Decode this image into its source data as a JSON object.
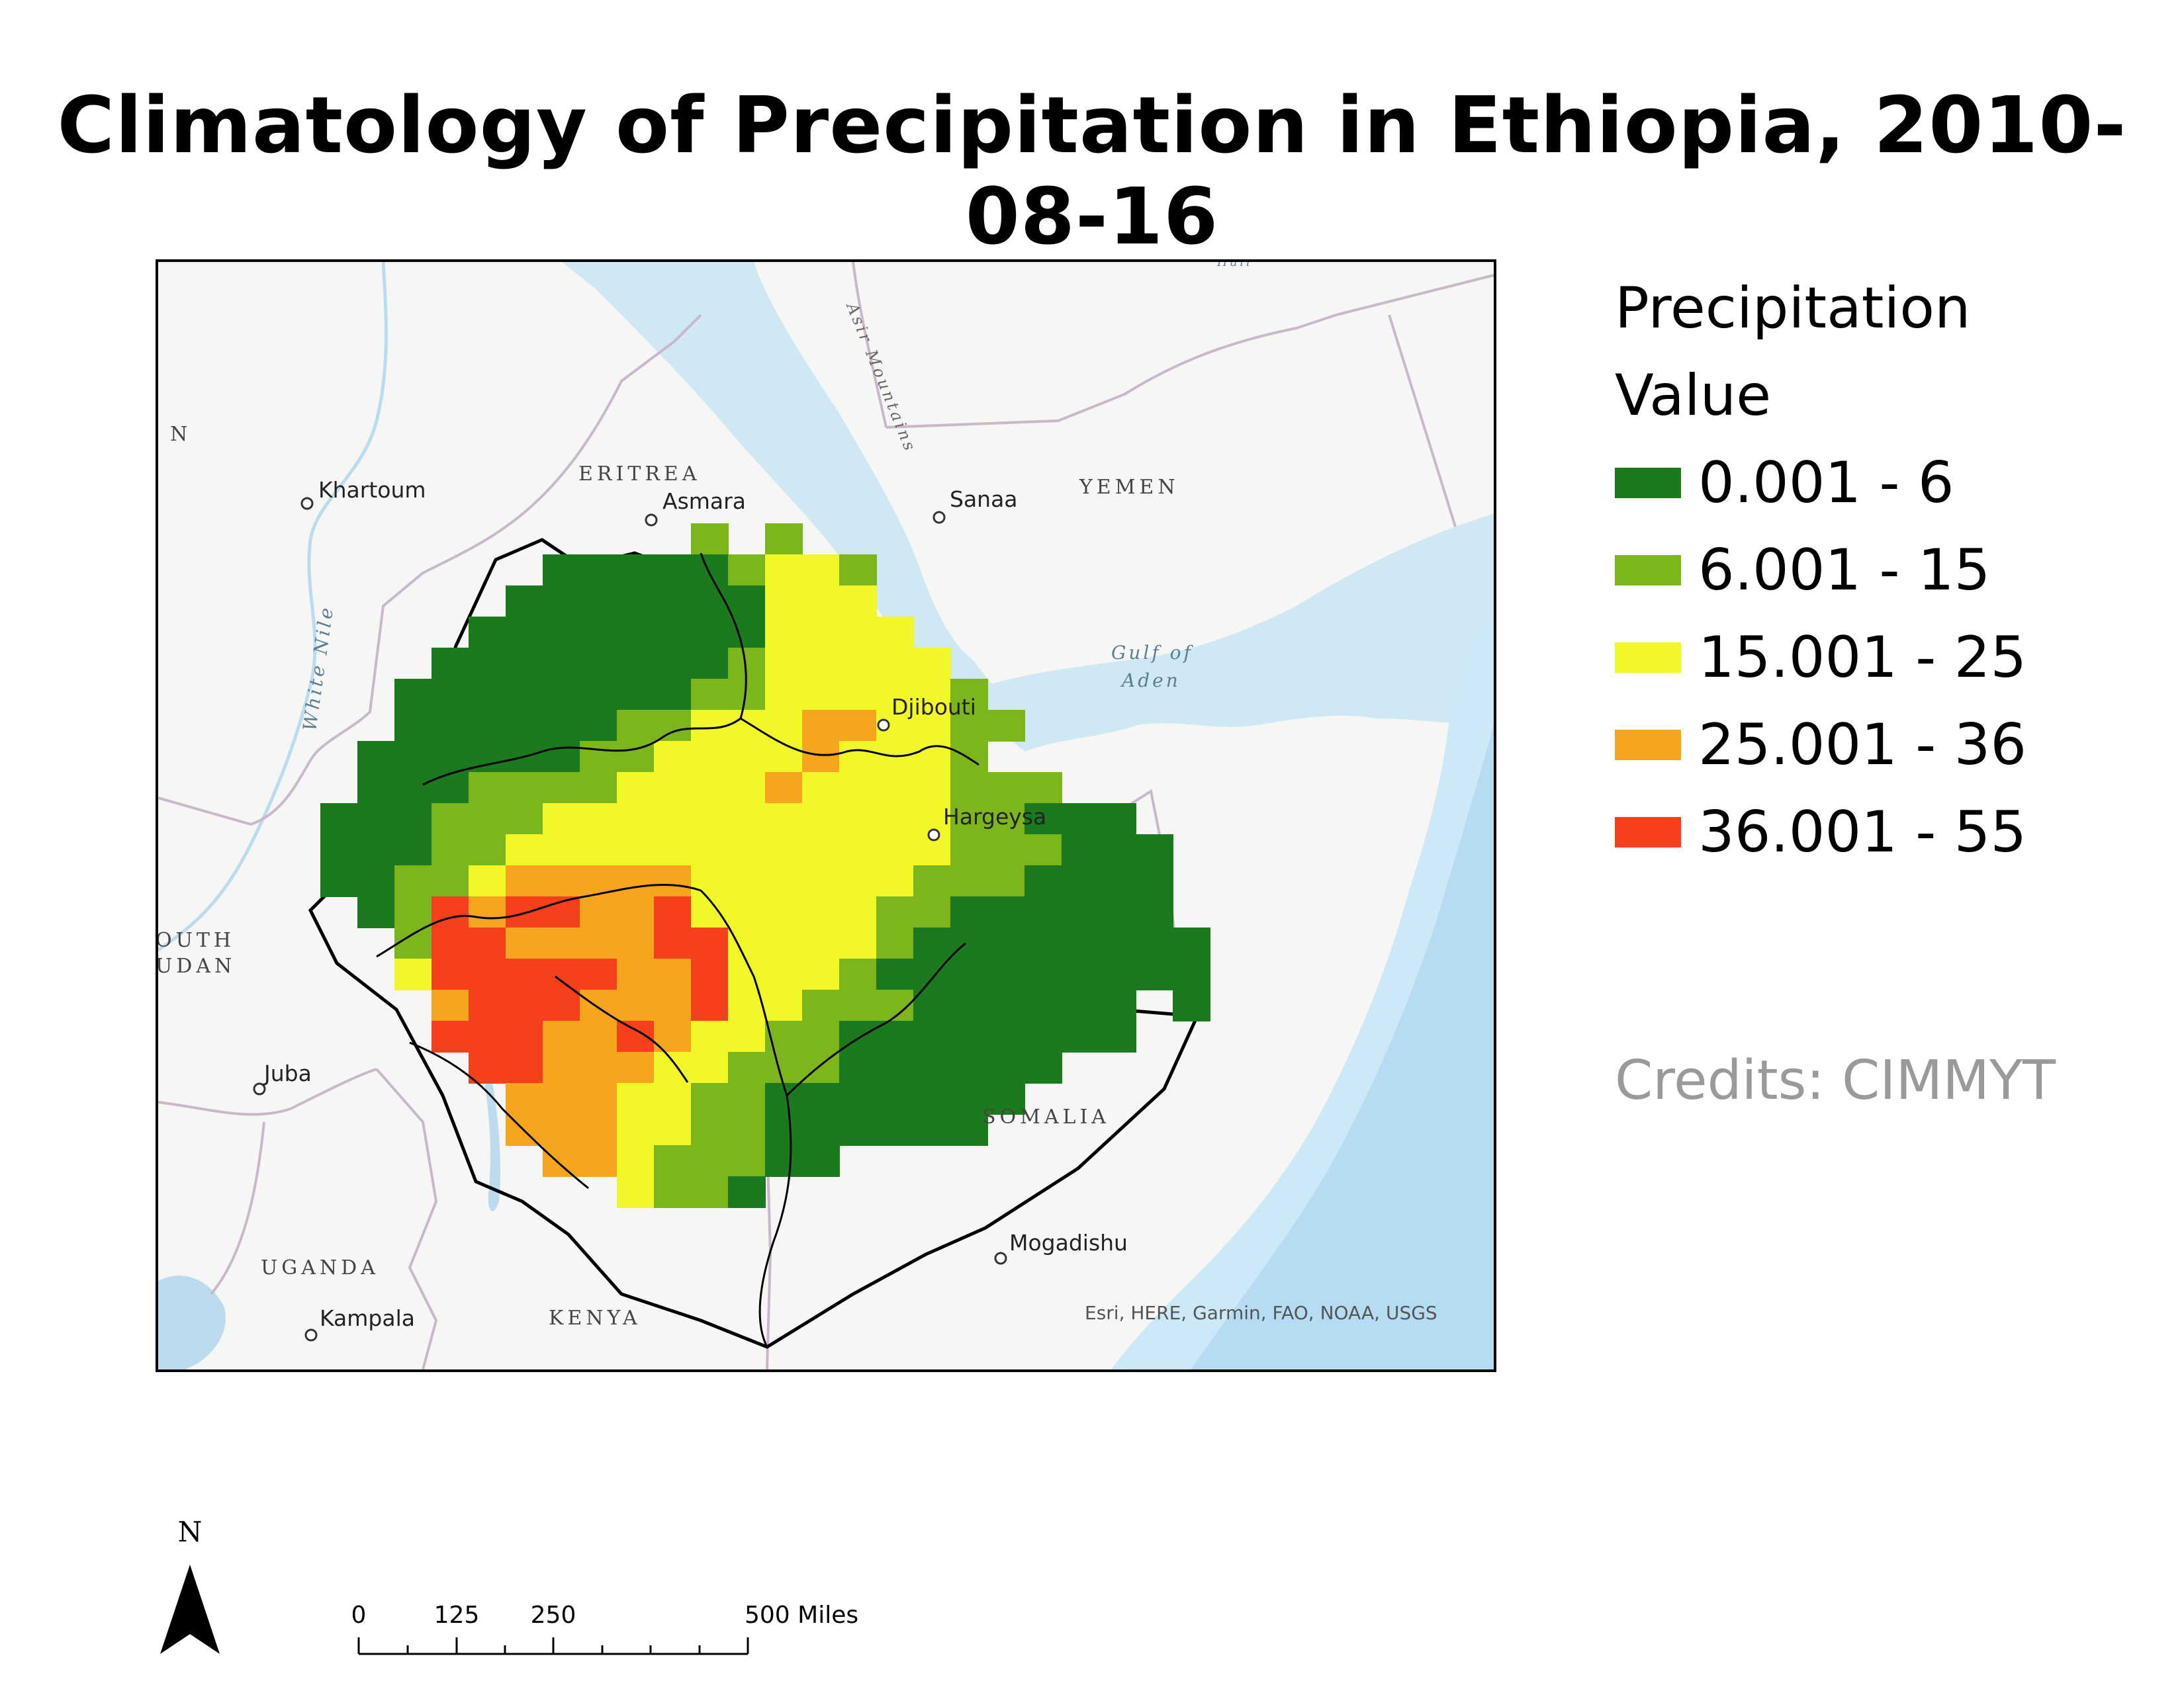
{
  "title": "Climatology of Precipitation in Ethiopia, 2010-08-16",
  "legend": {
    "title_line1": "Precipitation",
    "title_line2": "Value",
    "classes": [
      {
        "label": "0.001 - 6",
        "color": "#1b7a1e"
      },
      {
        "label": "6.001 - 15",
        "color": "#7db51c"
      },
      {
        "label": "15.001 - 25",
        "color": "#f2f72a"
      },
      {
        "label": "25.001 - 36",
        "color": "#f7a51e"
      },
      {
        "label": "36.001 - 55",
        "color": "#f6401c"
      }
    ]
  },
  "credits": "Credits: CIMMYT",
  "map": {
    "attribution": "Esri, HERE, Garmin, FAO, NOAA, USGS",
    "cities": {
      "khartoum": "Khartoum",
      "asmara": "Asmara",
      "sanaa": "Sanaa",
      "djibouti": "Djibouti",
      "hargeysa": "Hargeysa",
      "juba": "Juba",
      "kampala": "Kampala",
      "mogadishu": "Mogadishu"
    },
    "countries": {
      "eritrea": "ERITREA",
      "yemen": "YEMEN",
      "somalia": "SOMALIA",
      "uganda": "UGANDA",
      "kenya": "KENYA",
      "south_sudan_1": "OUTH",
      "south_sudan_2": "UDAN",
      "sudan_fragment": "N"
    },
    "water": {
      "gulf_1": "Gulf of",
      "gulf_2": "Aden",
      "white_nile": "White Nile",
      "asir": "Asir Mountains",
      "top_fragment": "Hail"
    }
  },
  "north_arrow": {
    "label": "N"
  },
  "scale_bar": {
    "ticks": [
      "0",
      "125",
      "250",
      "500 Miles"
    ]
  }
}
